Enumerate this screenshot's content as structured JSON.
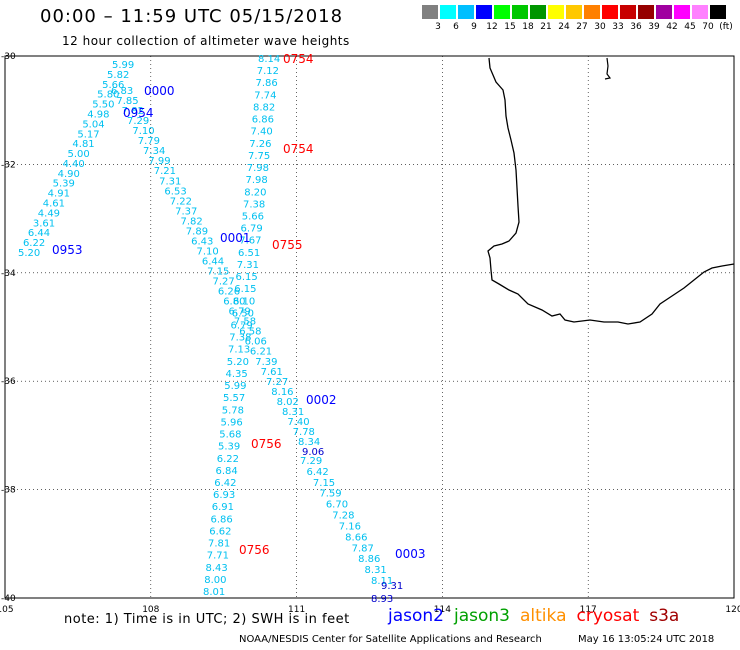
{
  "header": {
    "title": "00:00 – 11:59 UTC 05/15/2018",
    "subtitle": "12 hour collection of altimeter wave heights"
  },
  "legend": {
    "colors": [
      "#808080",
      "#00ffff",
      "#00bfff",
      "#0000ff",
      "#00ff00",
      "#00c800",
      "#009600",
      "#ffff00",
      "#ffc800",
      "#ff8000",
      "#ff0000",
      "#c80000",
      "#960000",
      "#a000a0",
      "#ff00ff",
      "#ff80ff",
      "#000000"
    ],
    "labels": [
      "3",
      "6",
      "9",
      "12",
      "15",
      "18",
      "21",
      "24",
      "27",
      "30",
      "33",
      "36",
      "39",
      "42",
      "45",
      "70",
      "(ft)"
    ]
  },
  "map": {
    "lon_range": [
      105,
      120
    ],
    "lat_range": [
      -30,
      -40
    ],
    "x_ticks": [
      "105",
      "108",
      "111",
      "114",
      "117",
      "120"
    ],
    "y_ticks": [
      "-30",
      "-32",
      "-34",
      "-36",
      "-38",
      "-40"
    ],
    "tracks": [
      {
        "name": "track-a",
        "color": "#00c0f0",
        "labels": [
          "5.99",
          "5.82",
          "5.66",
          "5.80",
          "5.50",
          "4.98",
          "5.04",
          "5.17",
          "4.81",
          "5.00",
          "4.40",
          "4.90",
          "5.39",
          "4.91",
          "4.61",
          "4.49",
          "3.61",
          "6.44",
          "6.22",
          "5.20"
        ]
      },
      {
        "name": "track-b",
        "color": "#00c0f0",
        "labels": [
          "6.83",
          "7.85",
          "7.82",
          "7.29",
          "7.10",
          "7.79",
          "7.34",
          "7.99",
          "7.21",
          "7.31",
          "6.53",
          "7.22",
          "7.37",
          "7.82",
          "7.89",
          "6.43",
          "7.10",
          "6.44",
          "7.15",
          "7.27",
          "6.26",
          "6.80",
          "6.79",
          "7.58",
          "6.58",
          "6.06",
          "6.21",
          "7.39",
          "7.61",
          "7.27",
          "8.16",
          "8.02",
          "8.31",
          "7.40",
          "7.78",
          "8.34"
        ]
      },
      {
        "name": "track-c",
        "color": "#00c0f0",
        "labels": [
          "8.14",
          "7.12",
          "7.86",
          "7.74",
          "8.82",
          "6.86",
          "7.40",
          "7.26",
          "7.75",
          "7.98",
          "7.98",
          "8.20",
          "7.38",
          "5.66",
          "6.79",
          "7.67",
          "6.51",
          "7.31",
          "6.15",
          "6.15",
          "6.10",
          "6.50",
          "6.79",
          "7.38",
          "7.13",
          "5.20",
          "4.35",
          "5.99",
          "5.57",
          "5.78",
          "5.96",
          "5.68",
          "5.39",
          "6.22",
          "6.84",
          "6.42",
          "6.93",
          "6.91",
          "6.86",
          "6.62",
          "7.81",
          "7.71",
          "8.43",
          "8.00",
          "8.01"
        ]
      },
      {
        "name": "track-d",
        "color": "#00c0f0",
        "labels": [
          "7.29",
          "6.42",
          "7.15",
          "7.59",
          "6.70",
          "7.28",
          "7.16",
          "8.66",
          "7.87",
          "8.86",
          "8.31",
          "8.11"
        ]
      },
      {
        "name": "track-d-dark",
        "color": "#0000cc",
        "labels": [
          "9.06",
          "9.31",
          "8.93"
        ]
      }
    ],
    "time_labels": [
      {
        "text": "0000",
        "color": "#0000ff"
      },
      {
        "text": "0954",
        "color": "#0000ff"
      },
      {
        "text": "0953",
        "color": "#0000ff"
      },
      {
        "text": "0001",
        "color": "#0000ff"
      },
      {
        "text": "0002",
        "color": "#0000ff"
      },
      {
        "text": "0003",
        "color": "#0000ff"
      },
      {
        "text": "0754",
        "color": "#ff0000"
      },
      {
        "text": "0754",
        "color": "#ff0000"
      },
      {
        "text": "0755",
        "color": "#ff0000"
      },
      {
        "text": "0756",
        "color": "#ff0000"
      },
      {
        "text": "0756",
        "color": "#ff0000"
      }
    ]
  },
  "footer": {
    "note": "note: 1) Time is in UTC; 2) SWH is in feet",
    "satellites": [
      {
        "name": "jason2",
        "color": "#0000ff"
      },
      {
        "name": "jason3",
        "color": "#00a000"
      },
      {
        "name": "altika",
        "color": "#ff9000"
      },
      {
        "name": "cryosat",
        "color": "#ff0000"
      },
      {
        "name": "s3a",
        "color": "#a00000"
      }
    ],
    "credit": "NOAA/NESDIS Center for Satellite Applications and Research",
    "stamp": "May 16 13:05:24 UTC 2018"
  }
}
